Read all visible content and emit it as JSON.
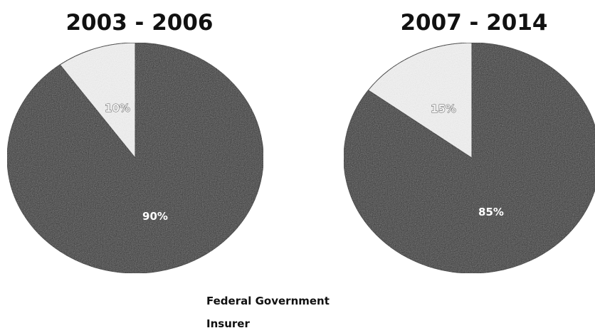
{
  "chart_data": [
    {
      "type": "pie",
      "title": "2003 - 2006",
      "slices": [
        {
          "name": "Federal Government",
          "value": 90,
          "label": "90%",
          "color": "#2b2b2b"
        },
        {
          "name": "Insurer",
          "value": 10,
          "label": "10%",
          "color": "#f4f4f4"
        }
      ]
    },
    {
      "type": "pie",
      "title": "2007 - 2014",
      "slices": [
        {
          "name": "Federal Government",
          "value": 85,
          "label": "85%",
          "color": "#2b2b2b"
        },
        {
          "name": "Insurer",
          "value": 15,
          "label": "15%",
          "color": "#f4f4f4"
        }
      ]
    }
  ],
  "legend": {
    "items": [
      {
        "label": "Federal Government"
      },
      {
        "label": "Insurer"
      }
    ]
  }
}
